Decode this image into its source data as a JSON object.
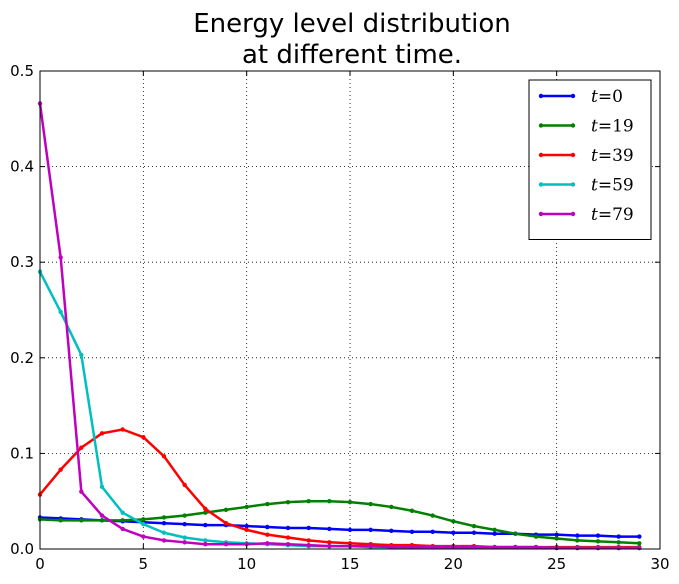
{
  "chart_data": {
    "type": "line",
    "title": "Energy level distribution at different time.",
    "title_lines": [
      "Energy level distribution",
      "at different time."
    ],
    "xlabel": "",
    "ylabel": "",
    "xlim": [
      0,
      30
    ],
    "ylim": [
      0,
      0.5
    ],
    "xticks": [
      0,
      5,
      10,
      15,
      20,
      25,
      30
    ],
    "yticks": [
      0.0,
      0.1,
      0.2,
      0.3,
      0.4,
      0.5
    ],
    "xtick_labels": [
      "0",
      "5",
      "10",
      "15",
      "20",
      "25",
      "30"
    ],
    "ytick_labels": [
      "0.0",
      "0.1",
      "0.2",
      "0.3",
      "0.4",
      "0.5"
    ],
    "grid": true,
    "legend_position": "top-right",
    "x": [
      0,
      1,
      2,
      3,
      4,
      5,
      6,
      7,
      8,
      9,
      10,
      11,
      12,
      13,
      14,
      15,
      16,
      17,
      18,
      19,
      20,
      21,
      22,
      23,
      24,
      25,
      26,
      27,
      28,
      29
    ],
    "series": [
      {
        "name": "t=0",
        "label_var": "t",
        "label_val": "0",
        "color": "#0000ff",
        "values": [
          0.033,
          0.032,
          0.031,
          0.03,
          0.029,
          0.028,
          0.027,
          0.026,
          0.025,
          0.025,
          0.024,
          0.023,
          0.022,
          0.022,
          0.021,
          0.02,
          0.02,
          0.019,
          0.018,
          0.018,
          0.017,
          0.017,
          0.016,
          0.016,
          0.015,
          0.015,
          0.014,
          0.014,
          0.013,
          0.013
        ]
      },
      {
        "name": "t=19",
        "label_var": "t",
        "label_val": "19",
        "color": "#008000",
        "values": [
          0.031,
          0.03,
          0.03,
          0.03,
          0.03,
          0.031,
          0.033,
          0.035,
          0.038,
          0.041,
          0.044,
          0.047,
          0.049,
          0.05,
          0.05,
          0.049,
          0.047,
          0.044,
          0.04,
          0.035,
          0.029,
          0.024,
          0.02,
          0.016,
          0.013,
          0.011,
          0.009,
          0.008,
          0.007,
          0.006
        ]
      },
      {
        "name": "t=39",
        "label_var": "t",
        "label_val": "39",
        "color": "#ff0000",
        "values": [
          0.057,
          0.083,
          0.106,
          0.121,
          0.125,
          0.117,
          0.097,
          0.067,
          0.042,
          0.027,
          0.02,
          0.015,
          0.012,
          0.009,
          0.007,
          0.006,
          0.005,
          0.004,
          0.004,
          0.003,
          0.003,
          0.003,
          0.002,
          0.002,
          0.002,
          0.002,
          0.002,
          0.002,
          0.002,
          0.002
        ]
      },
      {
        "name": "t=59",
        "label_var": "t",
        "label_val": "59",
        "color": "#00bfbf",
        "values": [
          0.29,
          0.248,
          0.203,
          0.065,
          0.038,
          0.026,
          0.017,
          0.012,
          0.009,
          0.007,
          0.006,
          0.005,
          0.004,
          0.003,
          0.003,
          0.003,
          0.002,
          0.002,
          0.002,
          0.002,
          0.002,
          0.002,
          0.002,
          0.002,
          0.002,
          0.001,
          0.001,
          0.001,
          0.001,
          0.001
        ]
      },
      {
        "name": "t=79",
        "label_var": "t",
        "label_val": "79",
        "color": "#bf00bf",
        "values": [
          0.466,
          0.305,
          0.06,
          0.035,
          0.021,
          0.013,
          0.009,
          0.007,
          0.005,
          0.005,
          0.005,
          0.006,
          0.005,
          0.004,
          0.003,
          0.003,
          0.003,
          0.002,
          0.002,
          0.002,
          0.002,
          0.002,
          0.002,
          0.002,
          0.002,
          0.001,
          0.001,
          0.001,
          0.001,
          0.001
        ]
      }
    ]
  }
}
